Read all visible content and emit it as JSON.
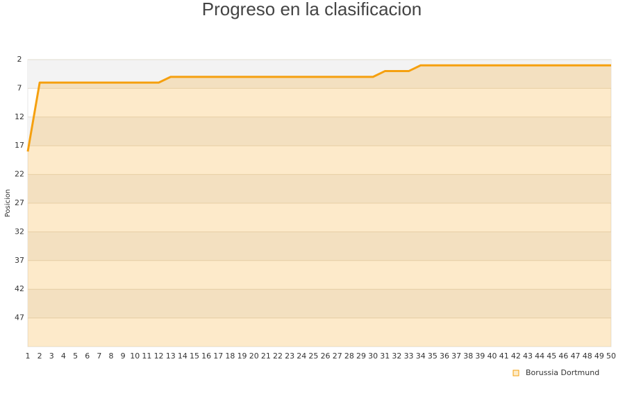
{
  "chart_data": {
    "type": "line",
    "title": "Progreso en la clasificacion",
    "ylabel": "Posicion",
    "x": [
      1,
      2,
      3,
      4,
      5,
      6,
      7,
      8,
      9,
      10,
      11,
      12,
      13,
      14,
      15,
      16,
      17,
      18,
      19,
      20,
      21,
      22,
      23,
      24,
      25,
      26,
      27,
      28,
      29,
      30,
      31,
      32,
      33,
      34,
      35,
      36,
      37,
      38,
      39,
      40,
      41,
      42,
      43,
      44,
      45,
      46,
      47,
      48,
      49,
      50
    ],
    "series": [
      {
        "name": "Borussia Dortmund",
        "color": "#f5a00f",
        "values": [
          18,
          6,
          6,
          6,
          6,
          6,
          6,
          6,
          6,
          6,
          6,
          6,
          5,
          5,
          5,
          5,
          5,
          5,
          5,
          5,
          5,
          5,
          5,
          5,
          5,
          5,
          5,
          5,
          5,
          5,
          4,
          4,
          4,
          3,
          3,
          3,
          3,
          3,
          3,
          3,
          3,
          3,
          3,
          3,
          3,
          3,
          3,
          3,
          3,
          3
        ]
      }
    ],
    "xlim": [
      1,
      50
    ],
    "xticks": [
      1,
      2,
      3,
      4,
      5,
      6,
      7,
      8,
      9,
      10,
      11,
      12,
      13,
      14,
      15,
      16,
      17,
      18,
      19,
      20,
      21,
      22,
      23,
      24,
      25,
      26,
      27,
      28,
      29,
      30,
      31,
      32,
      33,
      34,
      35,
      36,
      37,
      38,
      39,
      40,
      41,
      42,
      43,
      44,
      45,
      46,
      47,
      48,
      49,
      50
    ],
    "ylim": [
      2,
      52
    ],
    "yticks": [
      2,
      7,
      12,
      17,
      22,
      27,
      32,
      37,
      42,
      47
    ],
    "y_reversed": true,
    "grid": true,
    "area": true,
    "legend": "bottom-right"
  }
}
